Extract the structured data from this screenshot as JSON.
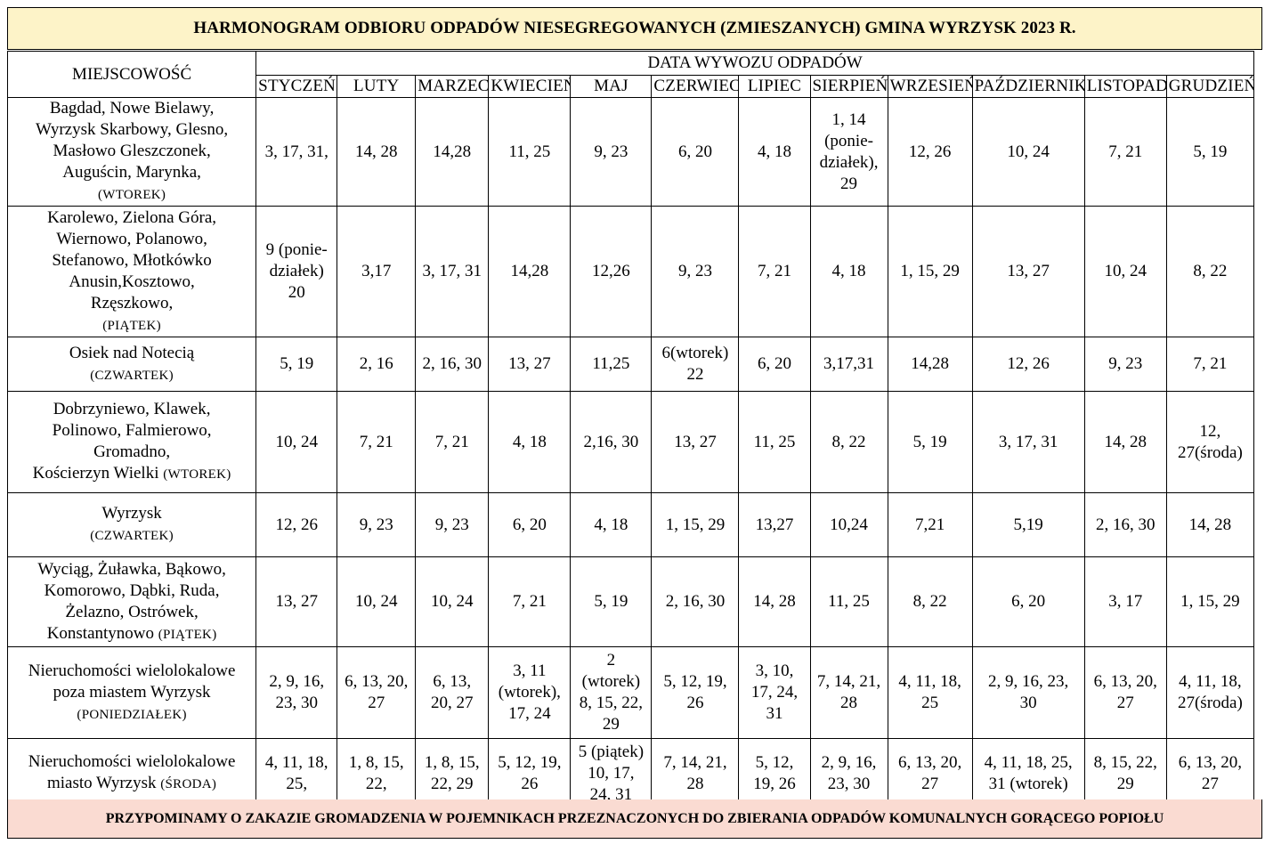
{
  "title": "HARMONOGRAM ODBIORU ODPADÓW NIESEGREGOWANYCH (ZMIESZANYCH) GMINA WYRZYSK 2023 R.",
  "header": {
    "location": "MIEJSCOWOŚĆ",
    "dates": "DATA WYWOZU ODPADÓW"
  },
  "months": [
    "STYCZEŃ",
    "LUTY",
    "MARZEC",
    "KWIECIEŃ",
    "MAJ",
    "CZERWIEC",
    "LIPIEC",
    "SIERPIEŃ",
    "WRZESIEŃ",
    "PAŹDZIERNIK",
    "LISTOPAD",
    "GRUDZIEŃ"
  ],
  "rows": [
    {
      "lines": [
        "Bagdad, Nowe Bielawy,",
        "Wyrzysk Skarbowy, Glesno,",
        "Masłowo  Gleszczonek,",
        "Auguścin, Marynka,"
      ],
      "day": "(WTOREK)",
      "dates": [
        [
          "3, 17, 31,"
        ],
        [
          "14, 28"
        ],
        [
          "14,28"
        ],
        [
          "11, 25"
        ],
        [
          "9, 23"
        ],
        [
          "6, 20"
        ],
        [
          "4, 18"
        ],
        [
          "1, 14",
          "(ponie-",
          "działek),",
          "29"
        ],
        [
          "12, 26"
        ],
        [
          "10, 24"
        ],
        [
          "7, 21"
        ],
        [
          "5, 19"
        ]
      ]
    },
    {
      "lines": [
        "Karolewo, Zielona Góra,",
        "Wiernowo, Polanowo,",
        "Stefanowo, Młotkówko",
        "Anusin,Kosztowo,",
        "Rzęszkowo,"
      ],
      "day": "(PIĄTEK)",
      "dates": [
        [
          "9 (ponie-",
          "działek)",
          "20"
        ],
        [
          "3,17"
        ],
        [
          "3, 17, 31"
        ],
        [
          "14,28"
        ],
        [
          "12,26"
        ],
        [
          "9, 23"
        ],
        [
          "7, 21"
        ],
        [
          "4, 18"
        ],
        [
          "1, 15, 29"
        ],
        [
          "13, 27"
        ],
        [
          "10, 24"
        ],
        [
          "8, 22"
        ]
      ]
    },
    {
      "lines": [
        "Osiek nad Notecią"
      ],
      "day": "(CZWARTEK)",
      "dates": [
        [
          "5, 19"
        ],
        [
          "2, 16"
        ],
        [
          "2, 16, 30"
        ],
        [
          "13, 27"
        ],
        [
          "11,25"
        ],
        [
          "6(wtorek)",
          "22"
        ],
        [
          "6, 20"
        ],
        [
          "3,17,31"
        ],
        [
          "14,28"
        ],
        [
          "12, 26"
        ],
        [
          "9, 23"
        ],
        [
          "7, 21"
        ]
      ]
    },
    {
      "lines": [
        "Dobrzyniewo, Klawek,",
        "Polinowo, Falmierowo,",
        "Gromadno,"
      ],
      "last_line": "Kościerzyn Wielki",
      "day": "(WTOREK)",
      "dates": [
        [
          "10, 24"
        ],
        [
          "7, 21"
        ],
        [
          "7, 21"
        ],
        [
          "4, 18"
        ],
        [
          "2,16, 30"
        ],
        [
          "13, 27"
        ],
        [
          "11, 25"
        ],
        [
          "8, 22"
        ],
        [
          "5, 19"
        ],
        [
          "3, 17, 31"
        ],
        [
          "14, 28"
        ],
        [
          "12,",
          "27(środa)"
        ]
      ]
    },
    {
      "lines": [
        "Wyrzysk"
      ],
      "day": "(CZWARTEK)",
      "dates": [
        [
          "12, 26"
        ],
        [
          "9, 23"
        ],
        [
          "9, 23"
        ],
        [
          "6, 20"
        ],
        [
          "4, 18"
        ],
        [
          "1, 15, 29"
        ],
        [
          "13,27"
        ],
        [
          "10,24"
        ],
        [
          "7,21"
        ],
        [
          "5,19"
        ],
        [
          "2, 16, 30"
        ],
        [
          "14, 28"
        ]
      ]
    },
    {
      "lines": [
        "Wyciąg, Żuławka, Bąkowo,",
        "Komorowo, Dąbki, Ruda,",
        "Żelazno, Ostrówek,"
      ],
      "last_line": "Konstantynowo",
      "day": "(PIĄTEK)",
      "dates": [
        [
          "13, 27"
        ],
        [
          "10, 24"
        ],
        [
          "10, 24"
        ],
        [
          "7, 21"
        ],
        [
          "5, 19"
        ],
        [
          "2, 16, 30"
        ],
        [
          "14, 28"
        ],
        [
          "11, 25"
        ],
        [
          "8, 22"
        ],
        [
          "6, 20"
        ],
        [
          "3, 17"
        ],
        [
          "1, 15, 29"
        ]
      ]
    },
    {
      "lines": [
        "Nieruchomości wielolokalowe",
        "poza miastem Wyrzysk"
      ],
      "day": "(PONIEDZIAŁEK)",
      "dates": [
        [
          "2, 9, 16,",
          "23, 30"
        ],
        [
          "6, 13, 20,",
          "27"
        ],
        [
          "6, 13,",
          "20, 27"
        ],
        [
          "3, 11",
          "(wtorek),",
          "17, 24"
        ],
        [
          "2",
          "(wtorek)",
          "8, 15, 22,",
          "29"
        ],
        [
          "5, 12, 19,",
          "26"
        ],
        [
          "3, 10,",
          "17, 24,",
          "31"
        ],
        [
          "7, 14, 21,",
          "28"
        ],
        [
          "4, 11, 18,",
          "25"
        ],
        [
          "2, 9, 16, 23,",
          "30"
        ],
        [
          "6, 13, 20,",
          "27"
        ],
        [
          "4, 11, 18,",
          "27(środa)"
        ]
      ]
    },
    {
      "lines": [
        "Nieruchomości wielolokalowe"
      ],
      "last_line": "miasto Wyrzysk",
      "day": "(ŚRODA)",
      "dates": [
        [
          "4, 11, 18,",
          "25,"
        ],
        [
          "1, 8, 15,",
          "22,"
        ],
        [
          "1, 8, 15,",
          "22, 29"
        ],
        [
          "5, 12, 19,",
          "26"
        ],
        [
          "5 (piątek)",
          "10, 17,",
          "24, 31"
        ],
        [
          "7, 14, 21,",
          "28"
        ],
        [
          "5, 12,",
          "19, 26"
        ],
        [
          "2, 9, 16,",
          "23, 30"
        ],
        [
          "6, 13, 20,",
          "27"
        ],
        [
          "4, 11, 18, 25,",
          "31 (wtorek)"
        ],
        [
          "8, 15, 22,",
          "29"
        ],
        [
          "6, 13, 20,",
          "27"
        ]
      ]
    }
  ],
  "footer": "PRZYPOMINAMY O ZAKAZIE GROMADZENIA W POJEMNIKACH PRZEZNACZONYCH DO ZBIERANIA ODPADÓW KOMUNALNYCH GORĄCEGO POPIOŁU"
}
